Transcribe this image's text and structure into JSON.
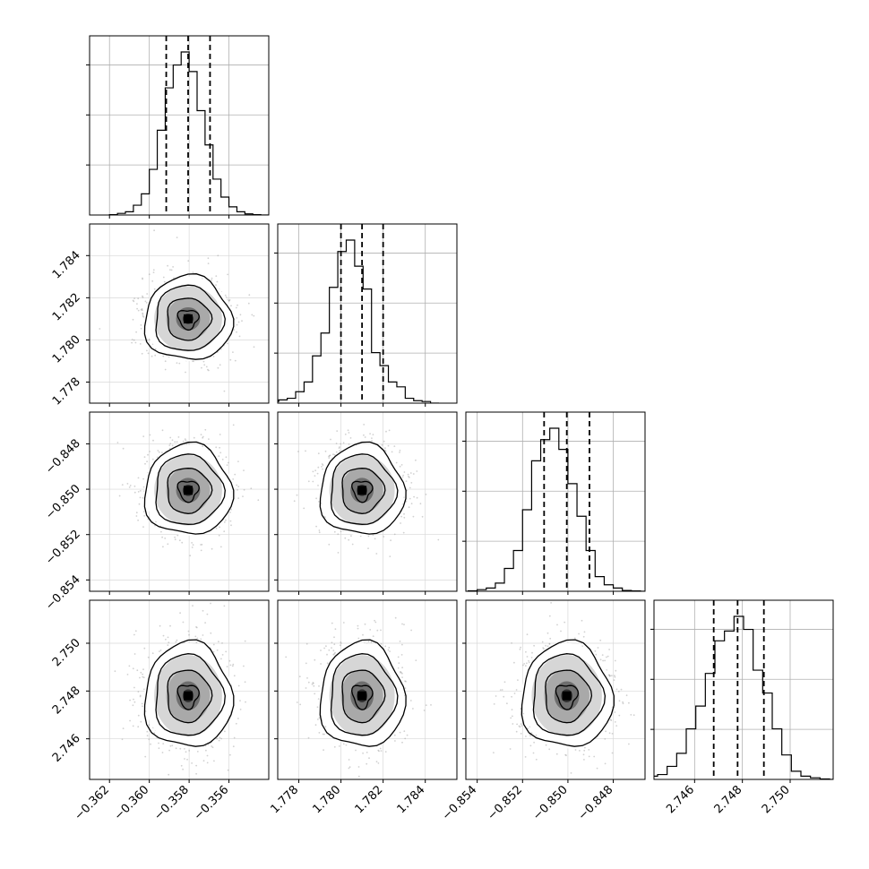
{
  "chart_data": {
    "type": "corner",
    "diag_hist": [
      {
        "x": [
          -0.3618,
          -0.3614,
          -0.361,
          -0.3606,
          -0.3602,
          -0.3598,
          -0.3594,
          -0.359,
          -0.3586,
          -0.3582,
          -0.3578,
          -0.3574,
          -0.357,
          -0.3566,
          -0.3562,
          -0.3558,
          -0.3554,
          -0.355,
          -0.3546,
          -0.3542
        ],
        "counts": [
          0.002,
          0.01,
          0.02,
          0.06,
          0.13,
          0.28,
          0.52,
          0.78,
          0.92,
          1.0,
          0.88,
          0.64,
          0.43,
          0.22,
          0.11,
          0.05,
          0.02,
          0.007,
          0.002,
          0.0
        ],
        "quantiles": [
          -0.35915,
          -0.35805,
          -0.35695
        ],
        "xlim": [
          -0.363,
          -0.354
        ]
      },
      {
        "x": [
          1.77685,
          1.77725,
          1.77765,
          1.77805,
          1.77845,
          1.77885,
          1.77925,
          1.77965,
          1.78005,
          1.78045,
          1.78085,
          1.78125,
          1.78165,
          1.78205,
          1.78245,
          1.78285,
          1.78325,
          1.78365,
          1.78405,
          1.78445
        ],
        "counts": [
          0.01,
          0.02,
          0.03,
          0.07,
          0.13,
          0.29,
          0.43,
          0.71,
          0.93,
          1.0,
          0.84,
          0.7,
          0.31,
          0.23,
          0.13,
          0.1,
          0.03,
          0.015,
          0.01,
          0.0
        ],
        "quantiles": [
          1.78,
          1.781,
          1.782
        ],
        "xlim": [
          1.777,
          1.7855
        ]
      },
      {
        "x": [
          -0.8542,
          -0.8538,
          -0.8534,
          -0.853,
          -0.8526,
          -0.8522,
          -0.8518,
          -0.8514,
          -0.851,
          -0.8506,
          -0.8502,
          -0.8498,
          -0.8494,
          -0.849,
          -0.8486,
          -0.8482,
          -0.8478,
          -0.8474,
          -0.847,
          -0.8466
        ],
        "counts": [
          0.003,
          0.01,
          0.02,
          0.05,
          0.14,
          0.25,
          0.5,
          0.8,
          0.93,
          1.0,
          0.87,
          0.66,
          0.46,
          0.25,
          0.09,
          0.04,
          0.02,
          0.005,
          0.002,
          0.0
        ],
        "quantiles": [
          -0.85105,
          -0.85005,
          -0.84905
        ],
        "xlim": [
          -0.8545,
          -0.8466
        ]
      },
      {
        "x": [
          2.74425,
          2.74465,
          2.74505,
          2.74545,
          2.74585,
          2.74625,
          2.74665,
          2.74705,
          2.74745,
          2.74785,
          2.74825,
          2.74865,
          2.74905,
          2.74945,
          2.74985,
          2.75025,
          2.75065,
          2.75105,
          2.75145,
          2.75185
        ],
        "counts": [
          0.02,
          0.03,
          0.08,
          0.16,
          0.31,
          0.45,
          0.65,
          0.85,
          0.91,
          1.0,
          0.92,
          0.67,
          0.53,
          0.31,
          0.15,
          0.05,
          0.02,
          0.01,
          0.003,
          0.0
        ],
        "quantiles": [
          2.7468,
          2.7478,
          2.7489
        ],
        "xlim": [
          2.7443,
          2.7518
        ]
      }
    ],
    "x_ticks": [
      [
        "-0.362",
        "-0.360",
        "-0.358",
        "-0.356"
      ],
      [
        "1.778",
        "1.780",
        "1.782",
        "1.784"
      ],
      [
        "-0.854",
        "-0.852",
        "-0.850",
        "-0.848"
      ],
      [
        "2.746",
        "2.748",
        "2.750"
      ]
    ],
    "x_tick_values": [
      [
        -0.362,
        -0.36,
        -0.358,
        -0.356
      ],
      [
        1.778,
        1.78,
        1.782,
        1.784
      ],
      [
        -0.854,
        -0.852,
        -0.85,
        -0.848
      ],
      [
        2.746,
        2.748,
        2.75
      ]
    ],
    "y_ticks": [
      [],
      [
        "1.778",
        "1.780",
        "1.782",
        "1.784"
      ],
      [
        "-0.854",
        "-0.852",
        "-0.850",
        "-0.848"
      ],
      [
        "2.746",
        "2.748",
        "2.750"
      ]
    ],
    "y_tick_values": [
      [],
      [
        1.778,
        1.78,
        1.782,
        1.784
      ],
      [
        -0.854,
        -0.852,
        -0.85,
        -0.848
      ],
      [
        2.746,
        2.748,
        2.75
      ]
    ],
    "ylim": [
      null,
      [
        1.777,
        1.7855
      ],
      [
        -0.8545,
        -0.8466
      ],
      [
        2.7443,
        2.7518
      ]
    ],
    "mean": [
      -0.35805,
      1.781,
      -0.85005,
      2.7478
    ],
    "sigma": [
      0.0011,
      0.001,
      0.001,
      0.0011
    ],
    "grid": true
  }
}
